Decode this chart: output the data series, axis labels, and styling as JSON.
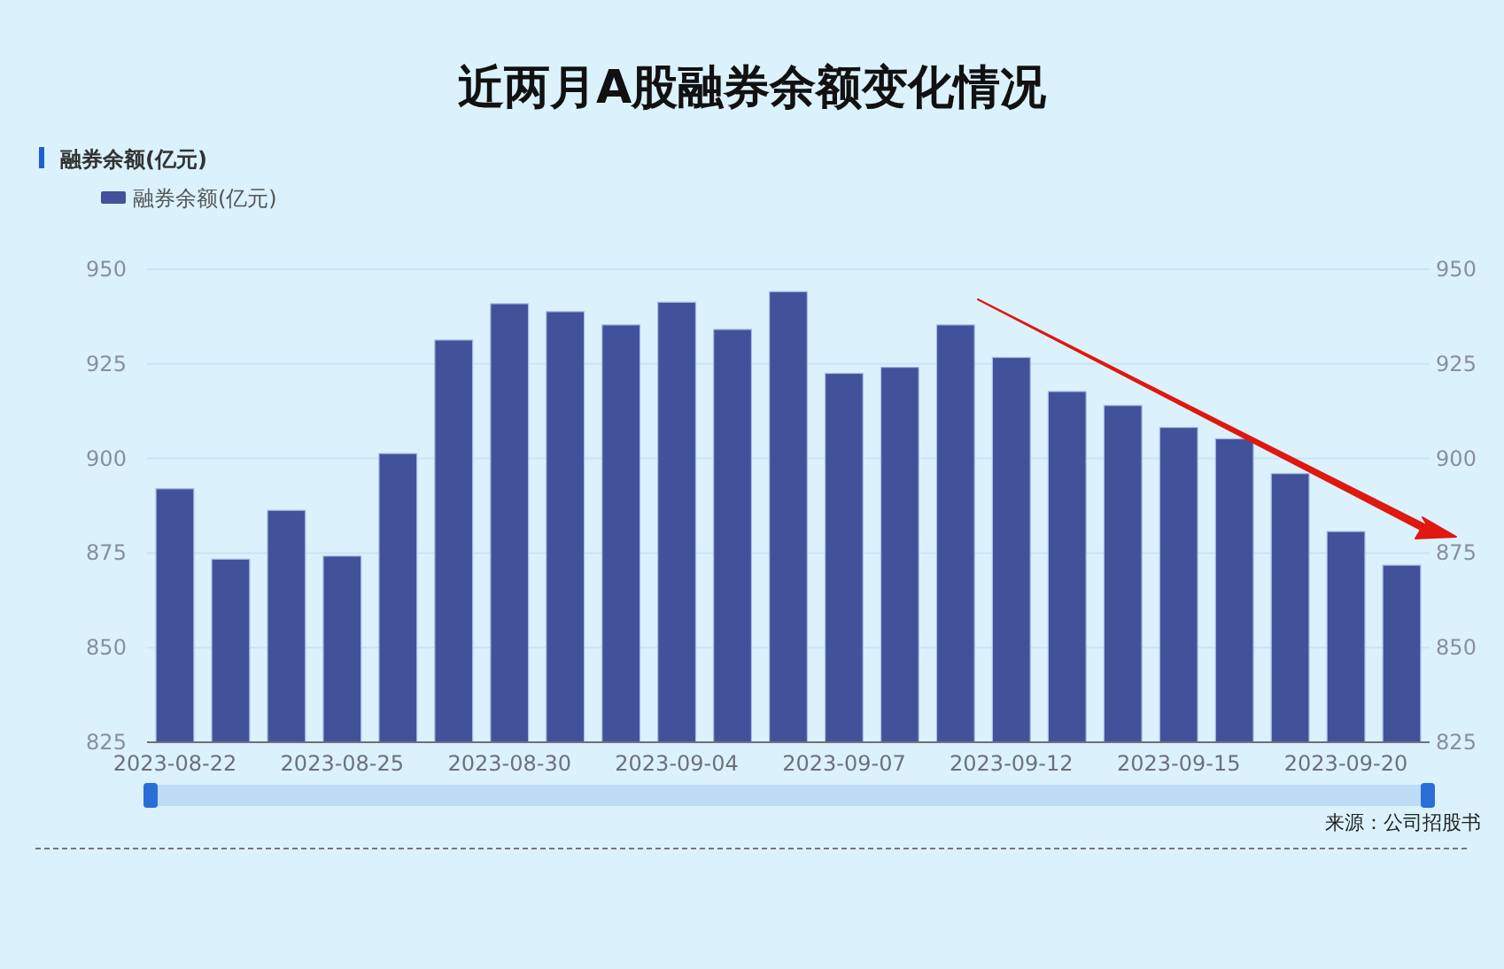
{
  "chart_data": {
    "type": "bar",
    "title": "近两月A股融券余额变化情况",
    "ylabel": "融券余额(亿元)",
    "categories": [
      "2023-08-22",
      null,
      null,
      "2023-08-25",
      null,
      null,
      "2023-08-30",
      null,
      null,
      "2023-09-04",
      null,
      null,
      "2023-09-07",
      null,
      null,
      "2023-09-12",
      null,
      null,
      "2023-09-15",
      null,
      null,
      "2023-09-20",
      null
    ],
    "series": [
      {
        "name": "融券余额(亿元)",
        "color": "#42529a",
        "values": [
          892,
          873.4,
          886.3,
          874.2,
          901.3,
          931.3,
          940.9,
          938.8,
          935.3,
          941.3,
          934.1,
          944.1,
          922.5,
          924.1,
          935.3,
          926.7,
          917.7,
          914,
          908.2,
          905.2,
          896,
          880.7,
          871.8
        ]
      }
    ],
    "ylim": [
      825,
      950
    ],
    "yticks": [
      825,
      850,
      875,
      900,
      925,
      950
    ],
    "y2lim": [
      825,
      950
    ],
    "y2ticks": [
      825,
      850,
      875,
      900,
      925,
      950
    ],
    "grid": "y",
    "legend": "top left",
    "annotations": [
      "来源：公司招股书"
    ]
  }
}
